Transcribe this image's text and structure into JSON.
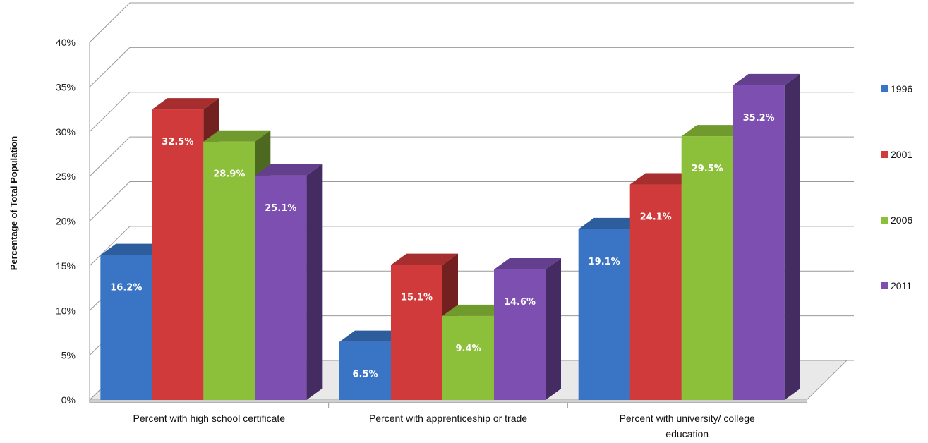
{
  "chart_data": {
    "type": "bar",
    "title": "",
    "xlabel": "",
    "ylabel": "Percentage of Total Population",
    "ylim": [
      0,
      40
    ],
    "yticks": [
      "0%",
      "5%",
      "10%",
      "15%",
      "20%",
      "25%",
      "30%",
      "35%",
      "40%"
    ],
    "grid": true,
    "legend_position": "right",
    "categories": [
      [
        "Percent with high school certificate"
      ],
      [
        "Percent with apprenticeship or trade"
      ],
      [
        "Percent with university/ college",
        "education"
      ]
    ],
    "series": [
      {
        "name": "1996",
        "color": "#3a74c4",
        "values": [
          16.2,
          6.5,
          19.1
        ],
        "labels": [
          "16.2%",
          "6.5%",
          "19.1%"
        ]
      },
      {
        "name": "2001",
        "color": "#d13a3a",
        "values": [
          32.5,
          15.1,
          24.1
        ],
        "labels": [
          "32.5%",
          "15.1%",
          "24.1%"
        ]
      },
      {
        "name": "2006",
        "color": "#8cbf3a",
        "values": [
          28.9,
          9.4,
          29.5
        ],
        "labels": [
          "28.9%",
          "9.4%",
          "29.5%"
        ]
      },
      {
        "name": "2011",
        "color": "#7c4fb0",
        "values": [
          25.1,
          14.6,
          35.2
        ],
        "labels": [
          "25.1%",
          "14.6%",
          "35.2%"
        ]
      }
    ]
  }
}
